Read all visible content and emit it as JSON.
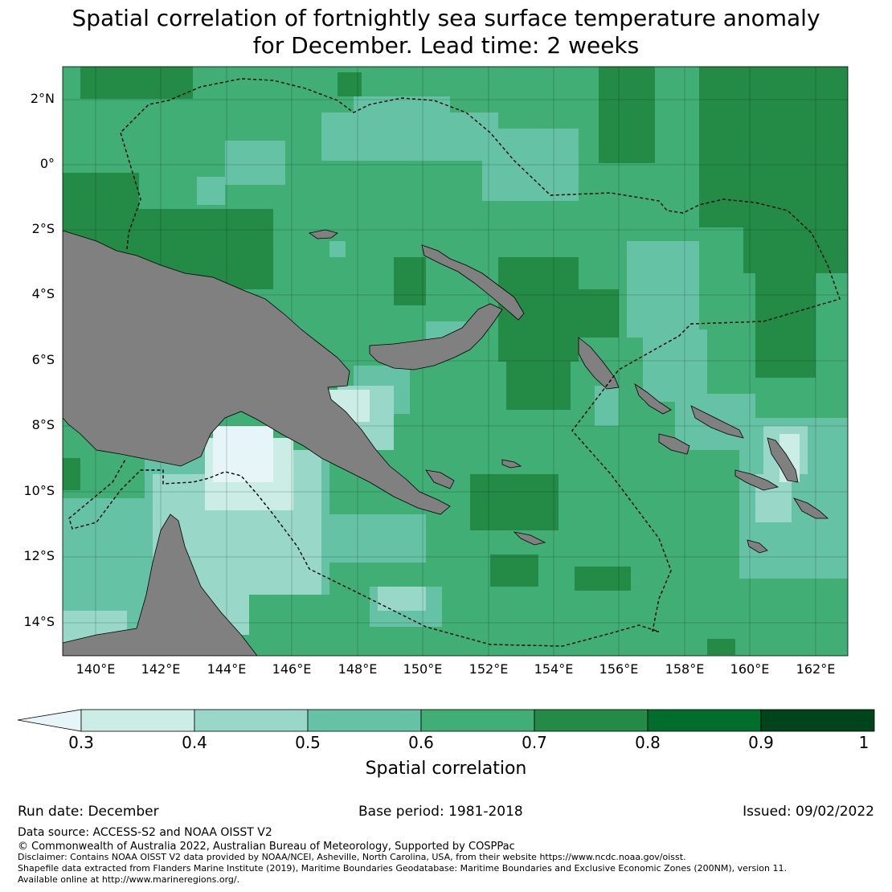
{
  "title_line1": "Spatial correlation of fortnightly sea surface temperature anomaly",
  "title_line2": "for December. Lead time: 2 weeks",
  "lat_ticks": [
    {
      "label": "2°N",
      "value": 2
    },
    {
      "label": "0°",
      "value": 0
    },
    {
      "label": "2°S",
      "value": -2
    },
    {
      "label": "4°S",
      "value": -4
    },
    {
      "label": "6°S",
      "value": -6
    },
    {
      "label": "8°S",
      "value": -8
    },
    {
      "label": "10°S",
      "value": -10
    },
    {
      "label": "12°S",
      "value": -12
    },
    {
      "label": "14°S",
      "value": -14
    }
  ],
  "lon_ticks": [
    {
      "label": "140°E",
      "value": 140
    },
    {
      "label": "142°E",
      "value": 142
    },
    {
      "label": "144°E",
      "value": 144
    },
    {
      "label": "146°E",
      "value": 146
    },
    {
      "label": "148°E",
      "value": 148
    },
    {
      "label": "150°E",
      "value": 150
    },
    {
      "label": "152°E",
      "value": 152
    },
    {
      "label": "154°E",
      "value": 154
    },
    {
      "label": "156°E",
      "value": 156
    },
    {
      "label": "158°E",
      "value": 158
    },
    {
      "label": "160°E",
      "value": 160
    },
    {
      "label": "162°E",
      "value": 162
    }
  ],
  "extent": {
    "lon": [
      139,
      163
    ],
    "lat": [
      -15,
      3
    ]
  },
  "colorbar": {
    "label": "Spatial correlation",
    "ticks": [
      "0.3",
      "0.4",
      "0.5",
      "0.6",
      "0.7",
      "0.8",
      "0.9",
      "1"
    ],
    "colors": [
      "#e6f6f8",
      "#ccece6",
      "#99d8c9",
      "#66c2a4",
      "#41ae76",
      "#238b45",
      "#006d2c",
      "#00441b"
    ],
    "land_color": "#808080"
  },
  "run_date": "Run date: December",
  "base_period": "Base period: 1981-2018",
  "issued": "Issued: 09/02/2022",
  "data_source": "Data source: ACCESS-S2 and NOAA OISST V2",
  "copyright": "© Commonwealth of Australia 2022, Australian Bureau of Meteorology, Supported by COSPPac",
  "disclaimer_1": "Disclaimer: Contains NOAA OISST V2 data provided by NOAA/NCEI, Asheville, North Carolina, USA, from their website https://www.ncdc.noaa.gov/oisst.",
  "disclaimer_2": "Shapefile data extracted from Flanders Marine Institute (2019), Maritime Boundaries Geodatabase: Maritime Boundaries and Exclusive Economic Zones (200NM), version 11.",
  "disclaimer_3": "Available online at http://www.marineregions.org/."
}
